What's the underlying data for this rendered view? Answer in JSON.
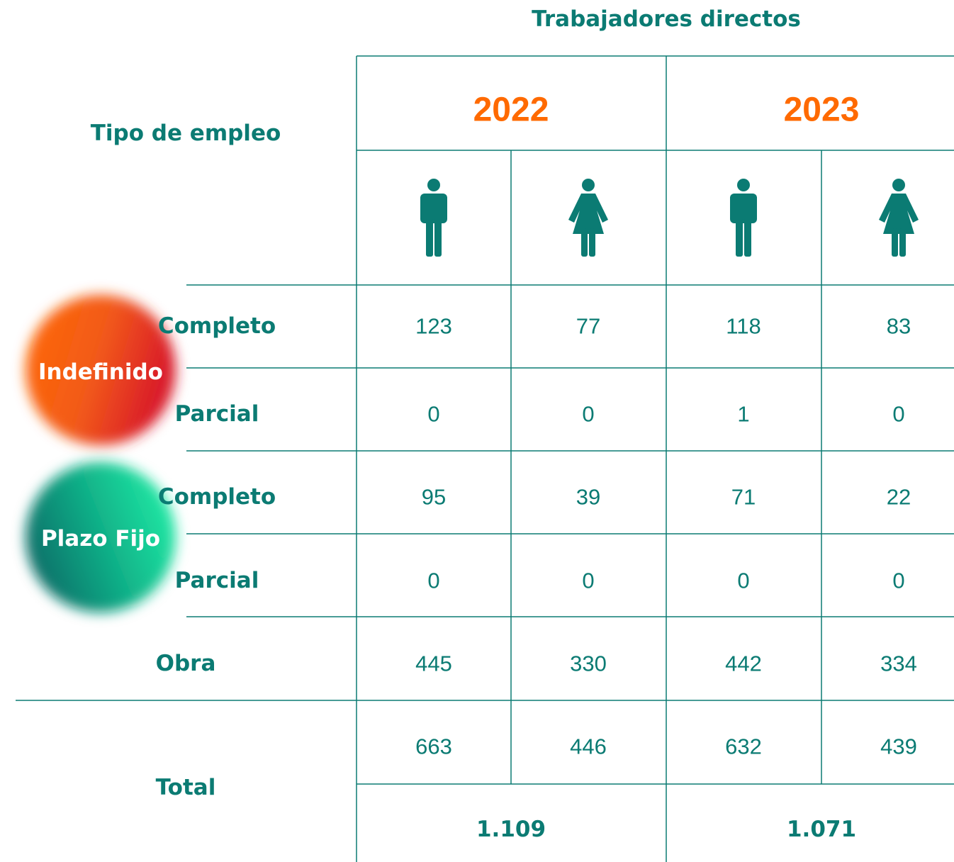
{
  "header": {
    "title": "Trabajadores directos",
    "row_header": "Tipo de empleo"
  },
  "years": [
    "2022",
    "2023"
  ],
  "groups": [
    {
      "label": "Indefinido",
      "rows": [
        {
          "label": "Completo",
          "values": [
            123,
            77,
            118,
            83
          ]
        },
        {
          "label": "Parcial",
          "values": [
            0,
            0,
            1,
            0
          ]
        }
      ]
    },
    {
      "label": "Plazo Fijo",
      "rows": [
        {
          "label": "Completo",
          "values": [
            95,
            39,
            71,
            22
          ]
        },
        {
          "label": "Parcial",
          "values": [
            0,
            0,
            0,
            0
          ]
        }
      ]
    }
  ],
  "obra": {
    "label": "Obra",
    "values": [
      445,
      330,
      442,
      334
    ]
  },
  "total": {
    "label": "Total",
    "values": [
      663,
      446,
      632,
      439
    ],
    "year_totals": [
      "1.109",
      "1.071"
    ]
  }
}
